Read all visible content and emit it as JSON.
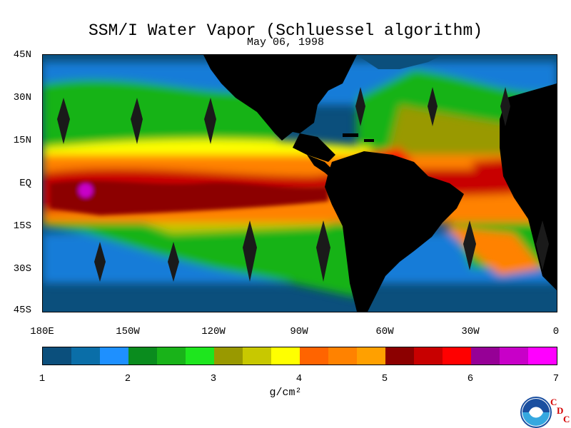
{
  "title": "SSM/I Water Vapor (Schluessel algorithm)",
  "date": "May 06, 1998",
  "lat_labels": [
    "45N",
    "30N",
    "15N",
    "EQ",
    "15S",
    "30S",
    "45S"
  ],
  "lon_labels": [
    "180E",
    "150W",
    "120W",
    "90W",
    "60W",
    "30W",
    "0"
  ],
  "colorbar": {
    "colors": [
      "#0b4f7c",
      "#0a6ea8",
      "#1e90ff",
      "#0a8c1e",
      "#19b319",
      "#1ee61e",
      "#999900",
      "#c8c800",
      "#ffff00",
      "#ff6400",
      "#ff8200",
      "#ffa000",
      "#8c0000",
      "#c80000",
      "#ff0000",
      "#960096",
      "#c800c8",
      "#ff00ff"
    ],
    "tick_labels": [
      "1",
      "2",
      "3",
      "4",
      "5",
      "6",
      "7"
    ],
    "units": "g/cm²"
  },
  "logos": {
    "noaa": "noaa-logo",
    "cdc": [
      "C",
      "D",
      "C"
    ]
  }
}
